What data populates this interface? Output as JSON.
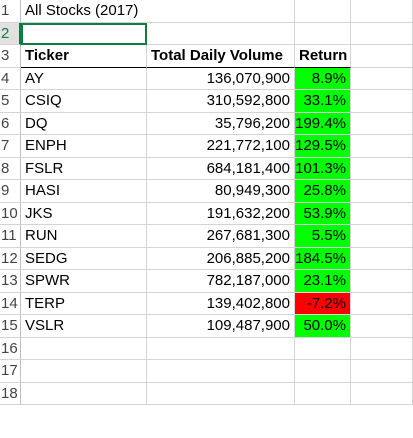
{
  "sheet": {
    "title": "All Stocks (2017)",
    "headers": {
      "ticker": "Ticker",
      "volume": "Total Daily Volume",
      "return": "Return"
    },
    "row_numbers": [
      "1",
      "2",
      "3",
      "4",
      "5",
      "6",
      "7",
      "8",
      "9",
      "10",
      "11",
      "12",
      "13",
      "14",
      "15",
      "16",
      "17",
      "18"
    ],
    "rows": [
      {
        "ticker": "AY",
        "volume": "136,070,900",
        "return": "8.9%",
        "status": "positive"
      },
      {
        "ticker": "CSIQ",
        "volume": "310,592,800",
        "return": "33.1%",
        "status": "positive"
      },
      {
        "ticker": "DQ",
        "volume": "35,796,200",
        "return": "199.4%",
        "status": "positive"
      },
      {
        "ticker": "ENPH",
        "volume": "221,772,100",
        "return": "129.5%",
        "status": "positive"
      },
      {
        "ticker": "FSLR",
        "volume": "684,181,400",
        "return": "101.3%",
        "status": "positive"
      },
      {
        "ticker": "HASI",
        "volume": "80,949,300",
        "return": "25.8%",
        "status": "positive"
      },
      {
        "ticker": "JKS",
        "volume": "191,632,200",
        "return": "53.9%",
        "status": "positive"
      },
      {
        "ticker": "RUN",
        "volume": "267,681,300",
        "return": "5.5%",
        "status": "positive"
      },
      {
        "ticker": "SEDG",
        "volume": "206,885,200",
        "return": "184.5%",
        "status": "positive"
      },
      {
        "ticker": "SPWR",
        "volume": "782,187,000",
        "return": "23.1%",
        "status": "positive"
      },
      {
        "ticker": "TERP",
        "volume": "139,402,800",
        "return": "-7.2%",
        "status": "negative"
      },
      {
        "ticker": "VSLR",
        "volume": "109,487,900",
        "return": "50.0%",
        "status": "positive"
      }
    ],
    "colors": {
      "positive": "#00ff00",
      "negative": "#ff0000",
      "selection": "#107c41"
    }
  }
}
